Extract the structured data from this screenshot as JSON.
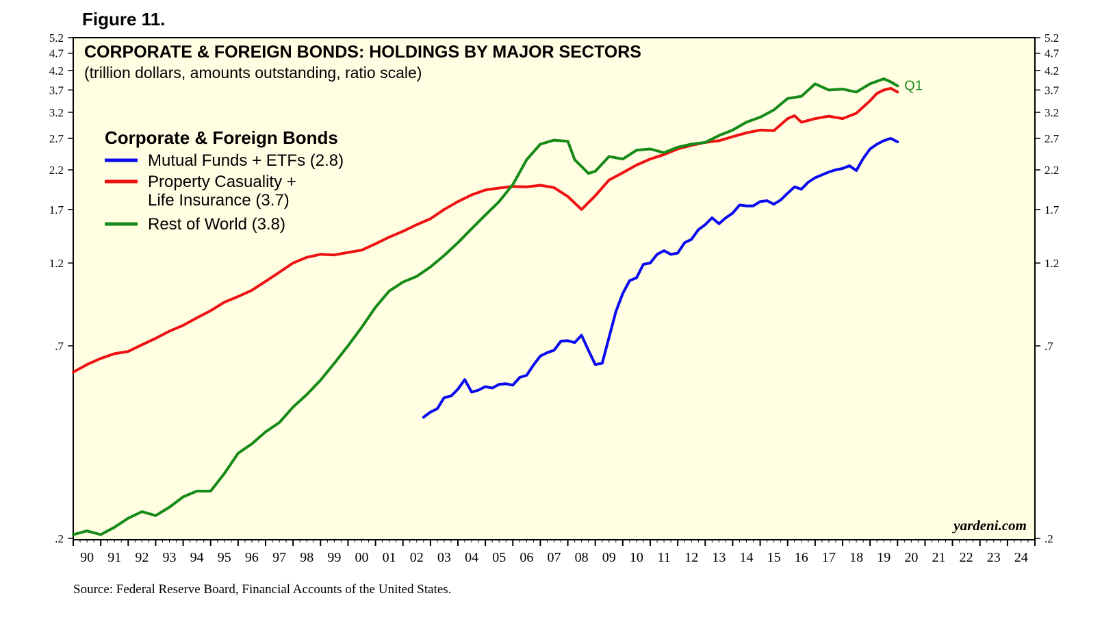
{
  "figure_label": "Figure 11.",
  "source": "Source: Federal Reserve Board, Financial Accounts of the United States.",
  "watermark": "yardeni.com",
  "colors": {
    "plot_bg": "#fffde2",
    "blue": "#0a0aee",
    "red": "#ee1111",
    "green": "#168a16"
  },
  "chart_data": {
    "type": "line",
    "title": "CORPORATE & FOREIGN BONDS: HOLDINGS BY MAJOR SECTORS",
    "subtitle": "(trillion dollars, amounts outstanding, ratio scale)",
    "legend_title": "Corporate & Foreign Bonds",
    "legend_position": "top-left",
    "y_scale": "log",
    "ylim": [
      0.2,
      5.2
    ],
    "y_ticks": [
      0.2,
      0.7,
      1.2,
      1.7,
      2.2,
      2.7,
      3.2,
      3.7,
      4.2,
      4.7,
      5.2
    ],
    "y_tick_labels": [
      ".2",
      ".7",
      "1.2",
      "1.7",
      "2.2",
      "2.7",
      "3.2",
      "3.7",
      "4.2",
      "4.7",
      "5.2"
    ],
    "xlim": [
      1990,
      2025
    ],
    "x_tick_labels": [
      "90",
      "91",
      "92",
      "93",
      "94",
      "95",
      "96",
      "97",
      "98",
      "99",
      "00",
      "01",
      "02",
      "03",
      "04",
      "05",
      "06",
      "07",
      "08",
      "09",
      "10",
      "11",
      "12",
      "13",
      "14",
      "15",
      "16",
      "17",
      "18",
      "19",
      "20",
      "21",
      "22",
      "23",
      "24"
    ],
    "end_annotation": "Q1",
    "series": [
      {
        "name": "Mutual Funds + ETFs",
        "legend_label": "Mutual Funds + ETFs (2.8)",
        "color": "#0a0aee",
        "x": [
          2002.75,
          2003.0,
          2003.25,
          2003.5,
          2003.75,
          2004.0,
          2004.25,
          2004.5,
          2004.75,
          2005.0,
          2005.25,
          2005.5,
          2005.75,
          2006.0,
          2006.25,
          2006.5,
          2006.75,
          2007.0,
          2007.25,
          2007.5,
          2007.75,
          2008.0,
          2008.25,
          2008.5,
          2008.75,
          2009.0,
          2009.25,
          2009.5,
          2009.75,
          2010.0,
          2010.25,
          2010.5,
          2010.75,
          2011.0,
          2011.25,
          2011.5,
          2011.75,
          2012.0,
          2012.25,
          2012.5,
          2012.75,
          2013.0,
          2013.25,
          2013.5,
          2013.75,
          2014.0,
          2014.25,
          2014.5,
          2014.75,
          2015.0,
          2015.25,
          2015.5,
          2015.75,
          2016.0,
          2016.25,
          2016.5,
          2016.75,
          2017.0,
          2017.25,
          2017.5,
          2017.75,
          2018.0,
          2018.25,
          2018.5,
          2018.75,
          2019.0,
          2019.25,
          2019.5,
          2019.75,
          2020.0
        ],
        "values": [
          0.44,
          0.455,
          0.465,
          0.5,
          0.505,
          0.528,
          0.562,
          0.518,
          0.525,
          0.537,
          0.532,
          0.545,
          0.547,
          0.542,
          0.57,
          0.578,
          0.618,
          0.655,
          0.67,
          0.68,
          0.722,
          0.724,
          0.715,
          0.75,
          0.68,
          0.62,
          0.625,
          0.74,
          0.875,
          0.985,
          1.07,
          1.09,
          1.19,
          1.2,
          1.27,
          1.3,
          1.27,
          1.28,
          1.37,
          1.4,
          1.49,
          1.54,
          1.61,
          1.55,
          1.61,
          1.66,
          1.75,
          1.74,
          1.74,
          1.79,
          1.8,
          1.76,
          1.81,
          1.89,
          1.97,
          1.94,
          2.03,
          2.09,
          2.13,
          2.17,
          2.2,
          2.22,
          2.26,
          2.19,
          2.37,
          2.52,
          2.6,
          2.66,
          2.7,
          2.64
        ]
      },
      {
        "name": "Property Casuality + Life Insurance",
        "legend_label_lines": [
          "Property Casuality +",
          "Life Insurance (3.7)"
        ],
        "color": "#ee1111",
        "x": [
          1990.0,
          1990.5,
          1991.0,
          1991.5,
          1992.0,
          1992.5,
          1993.0,
          1993.5,
          1994.0,
          1994.5,
          1995.0,
          1995.5,
          1996.0,
          1996.5,
          1997.0,
          1997.5,
          1998.0,
          1998.5,
          1999.0,
          1999.5,
          2000.0,
          2000.5,
          2001.0,
          2001.5,
          2002.0,
          2002.5,
          2003.0,
          2003.5,
          2004.0,
          2004.5,
          2005.0,
          2005.5,
          2006.0,
          2006.5,
          2007.0,
          2007.5,
          2008.0,
          2008.5,
          2009.0,
          2009.5,
          2010.0,
          2010.5,
          2011.0,
          2011.5,
          2012.0,
          2012.5,
          2013.0,
          2013.5,
          2014.0,
          2014.5,
          2015.0,
          2015.5,
          2016.0,
          2016.25,
          2016.5,
          2017.0,
          2017.5,
          2018.0,
          2018.5,
          2019.0,
          2019.25,
          2019.5,
          2019.75,
          2020.0
        ],
        "values": [
          0.59,
          0.62,
          0.645,
          0.665,
          0.675,
          0.705,
          0.735,
          0.77,
          0.8,
          0.84,
          0.88,
          0.93,
          0.965,
          1.005,
          1.065,
          1.13,
          1.2,
          1.245,
          1.27,
          1.265,
          1.285,
          1.305,
          1.36,
          1.42,
          1.475,
          1.54,
          1.6,
          1.7,
          1.79,
          1.87,
          1.93,
          1.955,
          1.975,
          1.97,
          1.99,
          1.96,
          1.85,
          1.7,
          1.86,
          2.06,
          2.16,
          2.27,
          2.36,
          2.43,
          2.52,
          2.58,
          2.63,
          2.66,
          2.73,
          2.8,
          2.85,
          2.84,
          3.07,
          3.13,
          3.0,
          3.07,
          3.12,
          3.07,
          3.18,
          3.45,
          3.62,
          3.7,
          3.74,
          3.65
        ]
      },
      {
        "name": "Rest of World",
        "legend_label": "Rest of World (3.8)",
        "color": "#168a16",
        "x": [
          1990.0,
          1990.5,
          1991.0,
          1991.5,
          1992.0,
          1992.5,
          1993.0,
          1993.5,
          1994.0,
          1994.5,
          1995.0,
          1995.5,
          1996.0,
          1996.5,
          1997.0,
          1997.5,
          1998.0,
          1998.5,
          1999.0,
          1999.5,
          2000.0,
          2000.5,
          2001.0,
          2001.5,
          2002.0,
          2002.5,
          2003.0,
          2003.5,
          2004.0,
          2004.5,
          2005.0,
          2005.5,
          2006.0,
          2006.5,
          2007.0,
          2007.5,
          2008.0,
          2008.25,
          2008.5,
          2008.75,
          2009.0,
          2009.5,
          2010.0,
          2010.5,
          2011.0,
          2011.5,
          2012.0,
          2012.5,
          2013.0,
          2013.5,
          2014.0,
          2014.5,
          2015.0,
          2015.5,
          2016.0,
          2016.5,
          2017.0,
          2017.5,
          2018.0,
          2018.5,
          2019.0,
          2019.5,
          2019.75,
          2020.0
        ],
        "values": [
          0.205,
          0.21,
          0.205,
          0.215,
          0.228,
          0.238,
          0.232,
          0.245,
          0.262,
          0.272,
          0.272,
          0.305,
          0.348,
          0.37,
          0.4,
          0.425,
          0.47,
          0.51,
          0.56,
          0.625,
          0.7,
          0.79,
          0.9,
          1.0,
          1.06,
          1.1,
          1.17,
          1.26,
          1.37,
          1.5,
          1.64,
          1.79,
          2.0,
          2.35,
          2.6,
          2.67,
          2.65,
          2.35,
          2.25,
          2.15,
          2.18,
          2.4,
          2.36,
          2.5,
          2.52,
          2.46,
          2.55,
          2.6,
          2.63,
          2.75,
          2.85,
          3.0,
          3.1,
          3.25,
          3.5,
          3.55,
          3.85,
          3.7,
          3.72,
          3.65,
          3.85,
          3.98,
          3.9,
          3.8
        ]
      }
    ]
  }
}
